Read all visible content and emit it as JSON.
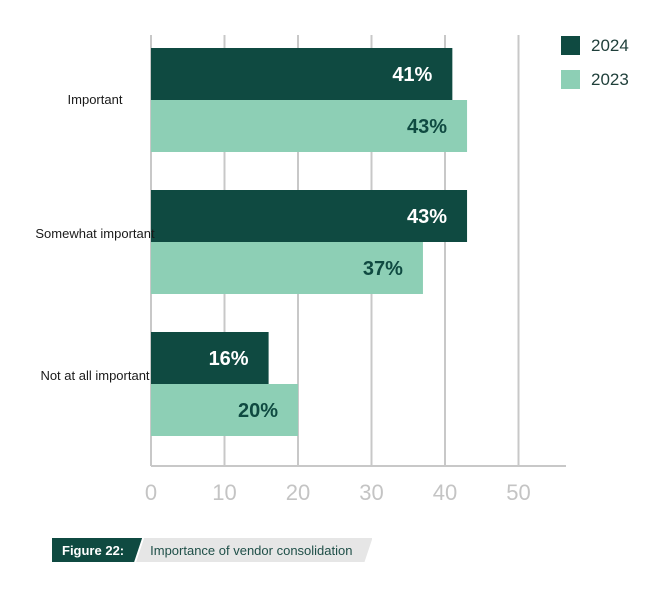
{
  "chart_data": {
    "type": "bar",
    "orientation": "horizontal",
    "categories": [
      "Important",
      "Somewhat important",
      "Not at all important"
    ],
    "series": [
      {
        "name": "2024",
        "values": [
          41,
          43,
          16
        ],
        "color": "#0f4a41",
        "label_color": "#ffffff"
      },
      {
        "name": "2023",
        "values": [
          43,
          37,
          20
        ],
        "color": "#8dcfb5",
        "label_color": "#0f4a41"
      }
    ],
    "value_labels": {
      "2024": [
        "41%",
        "43%",
        "16%"
      ],
      "2023": [
        "43%",
        "37%",
        "20%"
      ]
    },
    "x_ticks": [
      "0",
      "10",
      "20",
      "30",
      "40",
      "50"
    ],
    "xlim": [
      0,
      55
    ],
    "grid": true,
    "legend_position": "top-right"
  },
  "caption": {
    "label": "Figure 22:",
    "text": "Importance of vendor consolidation"
  }
}
